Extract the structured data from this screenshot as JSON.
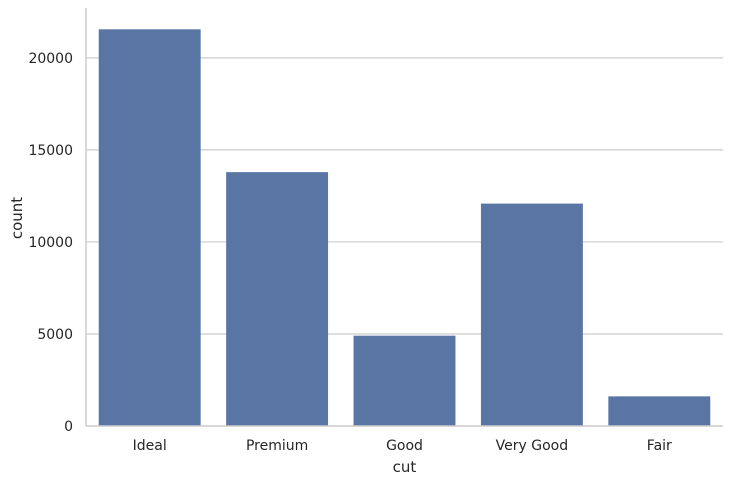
{
  "chart_data": {
    "type": "bar",
    "categories": [
      "Ideal",
      "Premium",
      "Good",
      "Very Good",
      "Fair"
    ],
    "values": [
      21551,
      13791,
      4906,
      12082,
      1610
    ],
    "xlabel": "cut",
    "ylabel": "count",
    "ylim": [
      0,
      22600
    ],
    "yticks": [
      0,
      5000,
      10000,
      15000,
      20000
    ],
    "ytick_labels": [
      "0",
      "5000",
      "10000",
      "15000",
      "20000"
    ],
    "grid": "horizontal",
    "bar_color": "#5975a4",
    "grid_color": "#cccccc",
    "axis_color": "#cccccc"
  }
}
